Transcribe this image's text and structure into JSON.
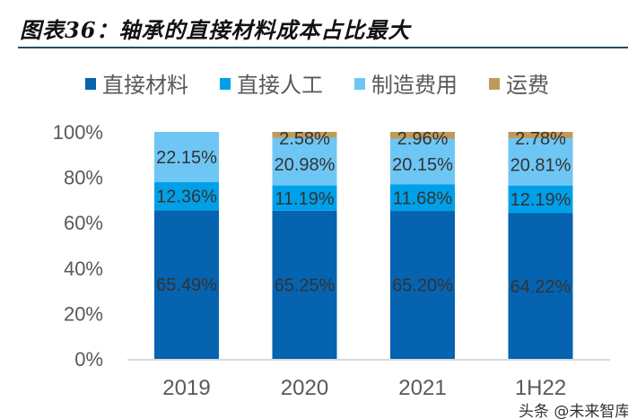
{
  "title": "图表36：轴承的直接材料成本占比最大",
  "watermark": "头条 @未来智库",
  "chart_data": {
    "type": "bar",
    "stacked": true,
    "title": "图表36：轴承的直接材料成本占比最大",
    "categories": [
      "2019",
      "2020",
      "2021",
      "1H22"
    ],
    "series": [
      {
        "name": "直接材料",
        "color": "#0563b0",
        "values": [
          65.49,
          65.25,
          65.2,
          64.22
        ]
      },
      {
        "name": "直接人工",
        "color": "#00a0e9",
        "values": [
          12.36,
          11.19,
          11.68,
          12.19
        ]
      },
      {
        "name": "制造费用",
        "color": "#6ec6f5",
        "values": [
          22.15,
          20.98,
          20.15,
          20.81
        ]
      },
      {
        "name": "运费",
        "color": "#bf9b5a",
        "values": [
          null,
          2.58,
          2.96,
          2.78
        ]
      }
    ],
    "data_labels": [
      [
        "65.49%",
        "65.25%",
        "65.20%",
        "64.22%"
      ],
      [
        "12.36%",
        "11.19%",
        "11.68%",
        "12.19%"
      ],
      [
        "22.15%",
        "20.98%",
        "20.15%",
        "20.81%"
      ],
      [
        null,
        "2.58%",
        "2.96%",
        "2.78%"
      ]
    ],
    "yticks": [
      "0%",
      "20%",
      "40%",
      "60%",
      "80%",
      "100%"
    ],
    "ylim": [
      0,
      100
    ],
    "xlabel": "",
    "ylabel": "",
    "legend_position": "top",
    "grid": false
  }
}
